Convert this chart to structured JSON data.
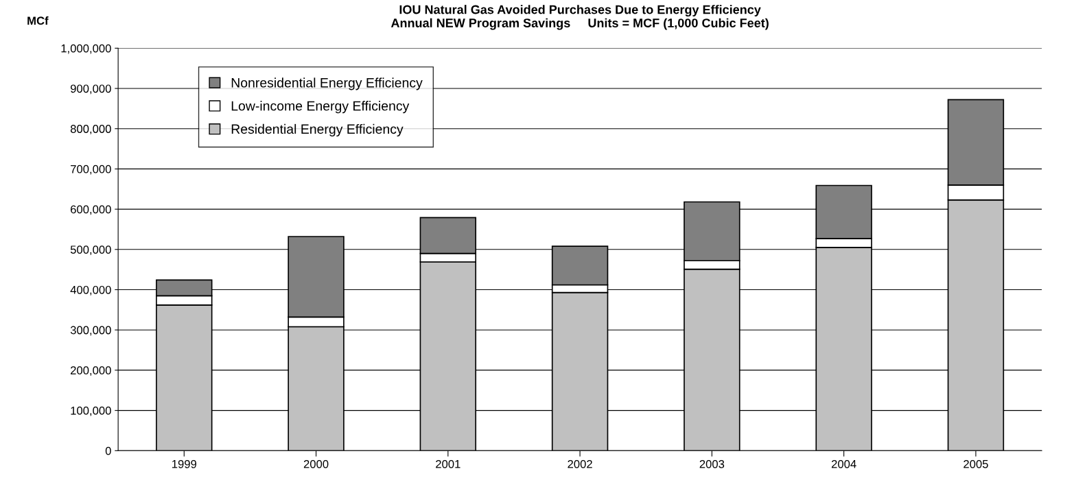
{
  "chart_data": {
    "type": "bar",
    "stacked": true,
    "title": "IOU Natural Gas Avoided Purchases Due to Energy Efficiency\nAnnual NEW Program Savings     Units = MCF (1,000 Cubic Feet)",
    "ylabel": "MCf",
    "categories": [
      "1999",
      "2000",
      "2001",
      "2002",
      "2003",
      "2004",
      "2005"
    ],
    "series": [
      {
        "name": "Residential Energy Efficiency",
        "color": "#c0c0c0",
        "values": [
          362000,
          308000,
          469000,
          393000,
          451000,
          505000,
          623000
        ]
      },
      {
        "name": "Low-income Energy Efficiency",
        "color": "#ffffff",
        "values": [
          23000,
          24000,
          21000,
          19000,
          21000,
          22000,
          37000
        ]
      },
      {
        "name": "Nonresidential Energy Efficiency",
        "color": "#808080",
        "values": [
          39000,
          200000,
          89000,
          96000,
          146000,
          132000,
          212000
        ]
      }
    ],
    "ylim": [
      0,
      1000000
    ],
    "yticks": [
      {
        "value": 0,
        "label": "0"
      },
      {
        "value": 100000,
        "label": "100,000"
      },
      {
        "value": 200000,
        "label": "200,000"
      },
      {
        "value": 300000,
        "label": "300,000"
      },
      {
        "value": 400000,
        "label": "400,000"
      },
      {
        "value": 500000,
        "label": "500,000"
      },
      {
        "value": 600000,
        "label": "600,000"
      },
      {
        "value": 700000,
        "label": "700,000"
      },
      {
        "value": 800000,
        "label": "800,000"
      },
      {
        "value": 900000,
        "label": "900,000"
      },
      {
        "value": 1000000,
        "label": "1,000,000"
      }
    ],
    "grid": "y",
    "legend": "top left"
  }
}
